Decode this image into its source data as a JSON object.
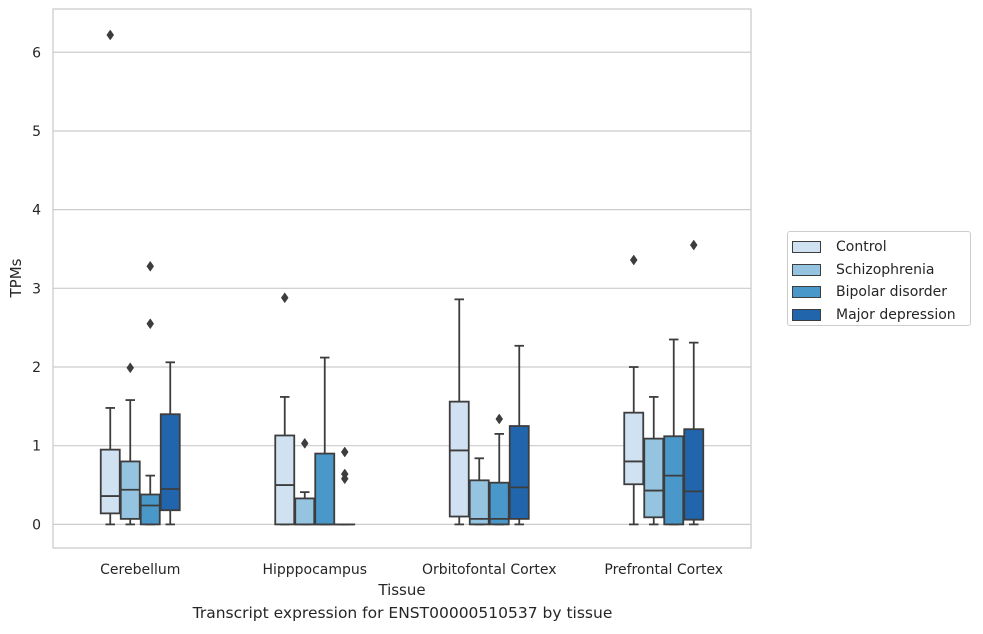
{
  "figure": {
    "caption": "Transcript expression for ENST00000510537 by tissue"
  },
  "chart_data": {
    "type": "box",
    "xlabel": "Tissue",
    "ylabel": "TPMs",
    "ylim": [
      -0.3,
      6.55
    ],
    "yticks": [
      0,
      1,
      2,
      3,
      4,
      5,
      6
    ],
    "grid": "horizontal",
    "legend_position": "right",
    "categories": [
      "Cerebellum",
      "Hipppocampus",
      "Orbitofontal Cortex",
      "Prefrontal Cortex"
    ],
    "series": [
      {
        "name": "Control",
        "color": "#d0e1f2",
        "boxes": [
          {
            "min": 0.0,
            "q1": 0.14,
            "median": 0.36,
            "q3": 0.95,
            "max": 1.48,
            "outliers": [
              6.22
            ]
          },
          {
            "min": 0.0,
            "q1": 0.0,
            "median": 0.5,
            "q3": 1.13,
            "max": 1.62,
            "outliers": [
              2.88
            ]
          },
          {
            "min": 0.0,
            "q1": 0.1,
            "median": 0.94,
            "q3": 1.56,
            "max": 2.86,
            "outliers": []
          },
          {
            "min": 0.0,
            "q1": 0.51,
            "median": 0.8,
            "q3": 1.42,
            "max": 2.0,
            "outliers": [
              3.36
            ]
          }
        ]
      },
      {
        "name": "Schizophrenia",
        "color": "#94c4df",
        "boxes": [
          {
            "min": 0.0,
            "q1": 0.07,
            "median": 0.44,
            "q3": 0.8,
            "max": 1.58,
            "outliers": [
              1.99
            ]
          },
          {
            "min": 0.0,
            "q1": 0.0,
            "median": 0.0,
            "q3": 0.33,
            "max": 0.41,
            "outliers": [
              1.03
            ]
          },
          {
            "min": 0.0,
            "q1": 0.0,
            "median": 0.07,
            "q3": 0.56,
            "max": 0.84,
            "outliers": []
          },
          {
            "min": 0.0,
            "q1": 0.09,
            "median": 0.43,
            "q3": 1.09,
            "max": 1.62,
            "outliers": []
          }
        ]
      },
      {
        "name": "Bipolar disorder",
        "color": "#4a98c9",
        "boxes": [
          {
            "min": 0.0,
            "q1": 0.0,
            "median": 0.24,
            "q3": 0.38,
            "max": 0.62,
            "outliers": [
              2.55,
              3.28
            ]
          },
          {
            "min": 0.0,
            "q1": 0.0,
            "median": 0.0,
            "q3": 0.9,
            "max": 2.12,
            "outliers": []
          },
          {
            "min": 0.0,
            "q1": 0.0,
            "median": 0.07,
            "q3": 0.53,
            "max": 1.15,
            "outliers": [
              1.34
            ]
          },
          {
            "min": 0.0,
            "q1": 0.0,
            "median": 0.62,
            "q3": 1.12,
            "max": 2.35,
            "outliers": []
          }
        ]
      },
      {
        "name": "Major depression",
        "color": "#2166ac",
        "boxes": [
          {
            "min": 0.0,
            "q1": 0.18,
            "median": 0.45,
            "q3": 1.4,
            "max": 2.06,
            "outliers": []
          },
          {
            "min": 0.0,
            "q1": 0.0,
            "median": 0.0,
            "q3": 0.0,
            "max": 0.0,
            "outliers": [
              0.58,
              0.64,
              0.92
            ]
          },
          {
            "min": 0.0,
            "q1": 0.07,
            "median": 0.47,
            "q3": 1.25,
            "max": 2.27,
            "outliers": []
          },
          {
            "min": 0.0,
            "q1": 0.06,
            "median": 0.42,
            "q3": 1.21,
            "max": 2.31,
            "outliers": [
              3.55
            ]
          }
        ]
      }
    ]
  }
}
